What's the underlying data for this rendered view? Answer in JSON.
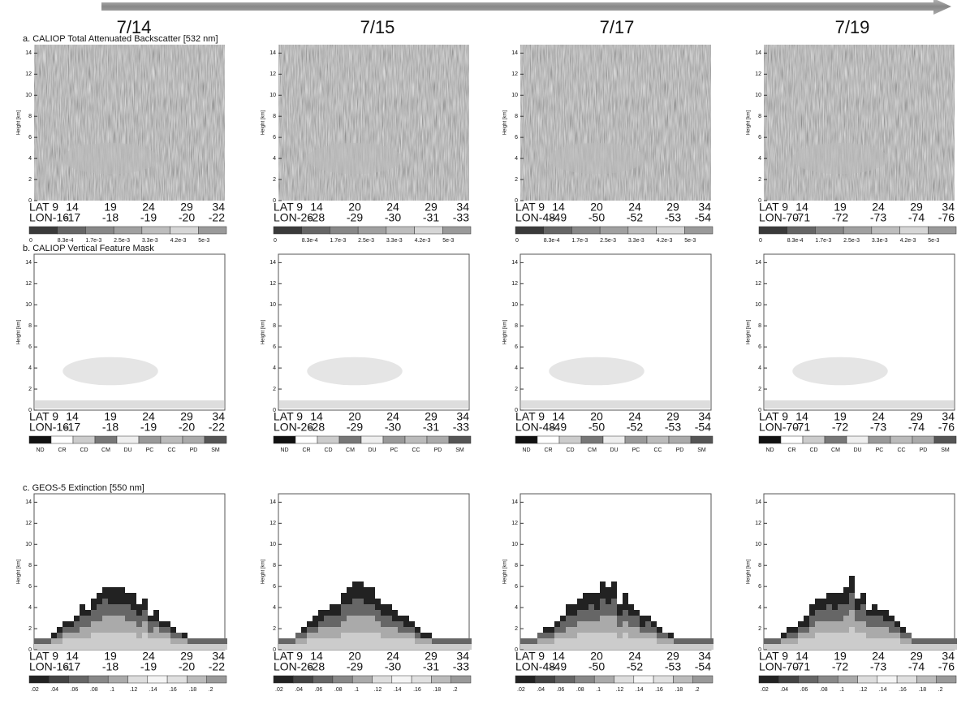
{
  "header": {
    "dates": [
      "7/14",
      "7/15",
      "7/17",
      "7/19"
    ]
  },
  "height_axis": {
    "label": "Height [km]",
    "ticks": [
      "0",
      "2",
      "4",
      "6",
      "8",
      "10",
      "12",
      "14"
    ]
  },
  "rows": [
    {
      "title": "a. CALIOP Total Attenuated Backscatter [532 nm]",
      "colorbar": [
        "0",
        "8.3e-4",
        "1.7e-3",
        "2.5e-3",
        "3.3e-3",
        "4.2e-3",
        "5e-3"
      ]
    },
    {
      "title": "b. CALIOP Vertical Feature Mask",
      "colorbar": [
        "ND",
        "CR",
        "CD",
        "CM",
        "DU",
        "PC",
        "CC",
        "PD",
        "SM"
      ]
    },
    {
      "title": "c. GEOS-5 Extinction [550 nm]",
      "colorbar": [
        ".02",
        ".04",
        ".06",
        ".08",
        ".1",
        ".12",
        ".14",
        ".16",
        ".18",
        ".2"
      ]
    }
  ],
  "panels": [
    {
      "lat": [
        "LAT 9",
        "14",
        "19",
        "24",
        "29",
        "34"
      ],
      "lon": [
        "LON-16",
        "-17",
        "-18",
        "-19",
        "-20",
        "-22"
      ]
    },
    {
      "lat": [
        "LAT 9",
        "14",
        "20",
        "24",
        "29",
        "34"
      ],
      "lon": [
        "LON-26",
        "-28",
        "-29",
        "-30",
        "-31",
        "-33"
      ]
    },
    {
      "lat": [
        "LAT 9",
        "14",
        "20",
        "24",
        "29",
        "34"
      ],
      "lon": [
        "LON-48",
        "-49",
        "-50",
        "-52",
        "-53",
        "-54"
      ]
    },
    {
      "lat": [
        "LAT 9",
        "14",
        "19",
        "24",
        "29",
        "34"
      ],
      "lon": [
        "LON-70",
        "-71",
        "-72",
        "-73",
        "-74",
        "-76"
      ]
    }
  ]
}
